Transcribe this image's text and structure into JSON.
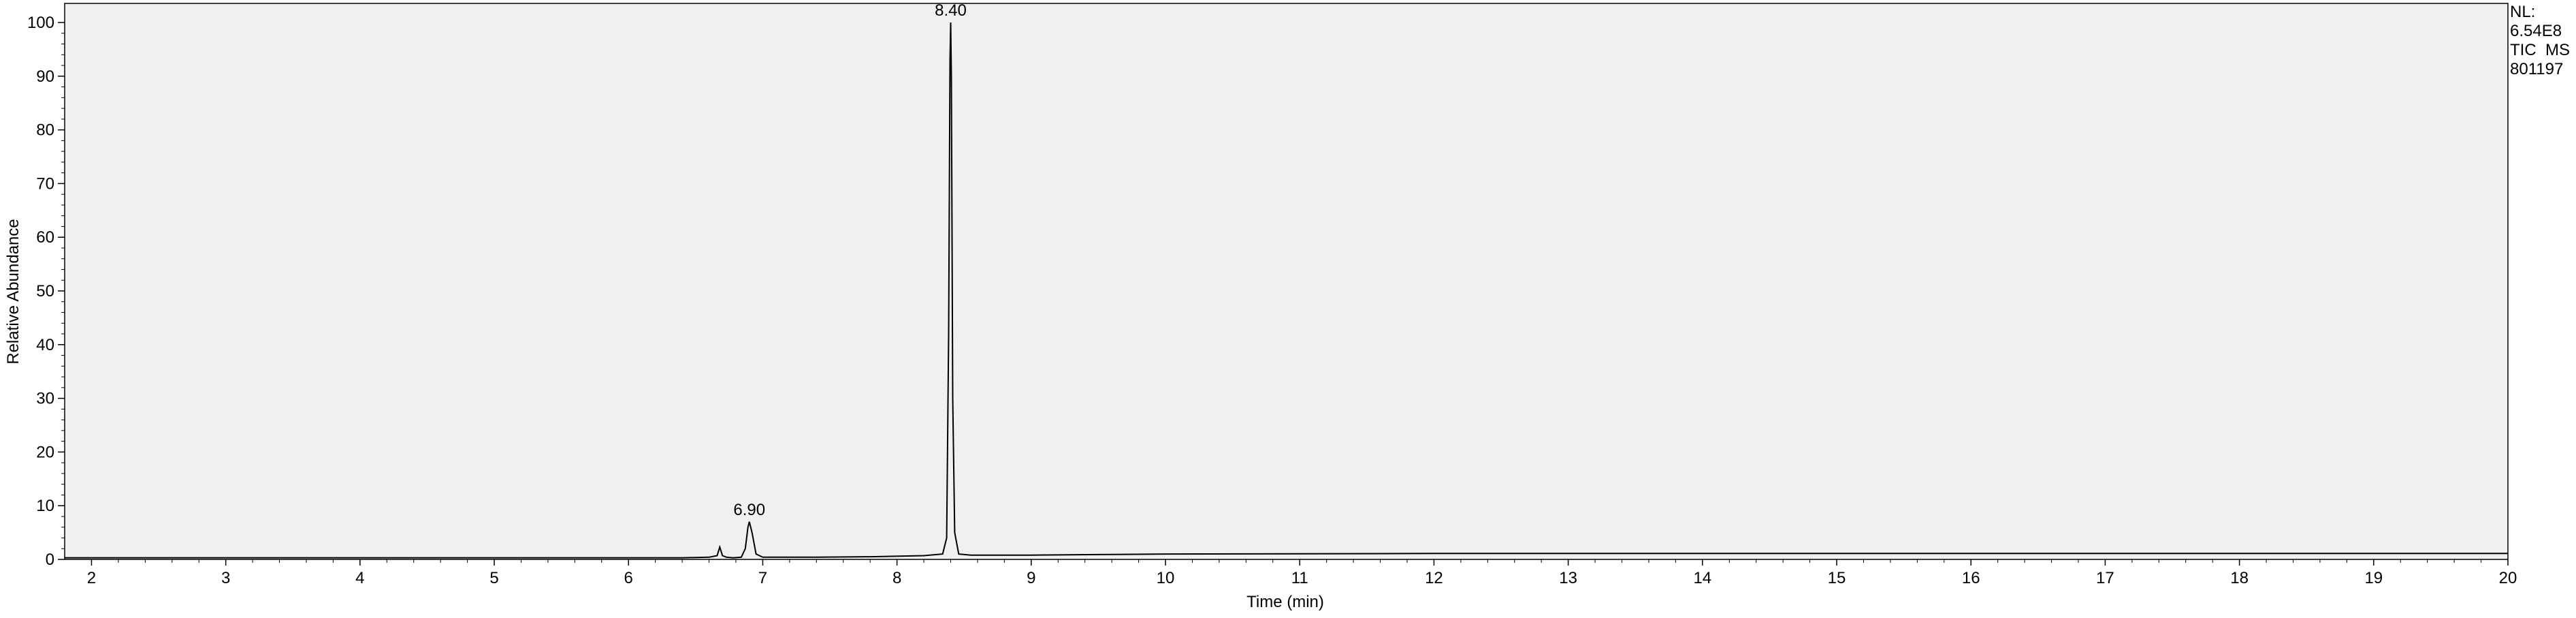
{
  "chart_data": {
    "type": "line",
    "xlabel": "Time (min)",
    "ylabel": "Relative Abundance",
    "xlim": [
      1.8,
      20
    ],
    "ylim": [
      0,
      100
    ],
    "x_ticks": [
      2,
      3,
      4,
      5,
      6,
      7,
      8,
      9,
      10,
      11,
      12,
      13,
      14,
      15,
      16,
      17,
      18,
      19,
      20
    ],
    "y_ticks": [
      0,
      10,
      20,
      30,
      40,
      50,
      60,
      70,
      80,
      90,
      100
    ],
    "grid": false,
    "info_lines": [
      "NL:",
      "6.54E8",
      "TIC  MS",
      "801197"
    ],
    "peak_labels": [
      {
        "x": 6.9,
        "y": 7,
        "label": "6.90"
      },
      {
        "x": 8.4,
        "y": 100,
        "label": "8.40"
      }
    ],
    "series": [
      {
        "x": [
          1.8,
          2.5,
          3.5,
          4.5,
          5.5,
          6.4,
          6.6,
          6.66,
          6.68,
          6.7,
          6.73,
          6.78,
          6.84,
          6.87,
          6.89,
          6.9,
          6.92,
          6.95,
          7.0,
          7.4,
          7.8,
          8.2,
          8.34,
          8.37,
          8.385,
          8.395,
          8.4,
          8.405,
          8.415,
          8.43,
          8.46,
          8.55,
          9.0,
          9.5,
          10.0,
          12.0,
          16.0,
          20.0
        ],
        "y": [
          0.3,
          0.3,
          0.3,
          0.3,
          0.3,
          0.3,
          0.4,
          0.7,
          2.3,
          0.7,
          0.4,
          0.3,
          0.4,
          2.0,
          6.0,
          7.0,
          5.0,
          1.0,
          0.4,
          0.4,
          0.5,
          0.7,
          1.0,
          4.0,
          42.0,
          93.0,
          100.0,
          90.0,
          30.0,
          5.0,
          1.0,
          0.8,
          0.8,
          0.9,
          1.0,
          1.1,
          1.1,
          1.1
        ]
      }
    ]
  }
}
